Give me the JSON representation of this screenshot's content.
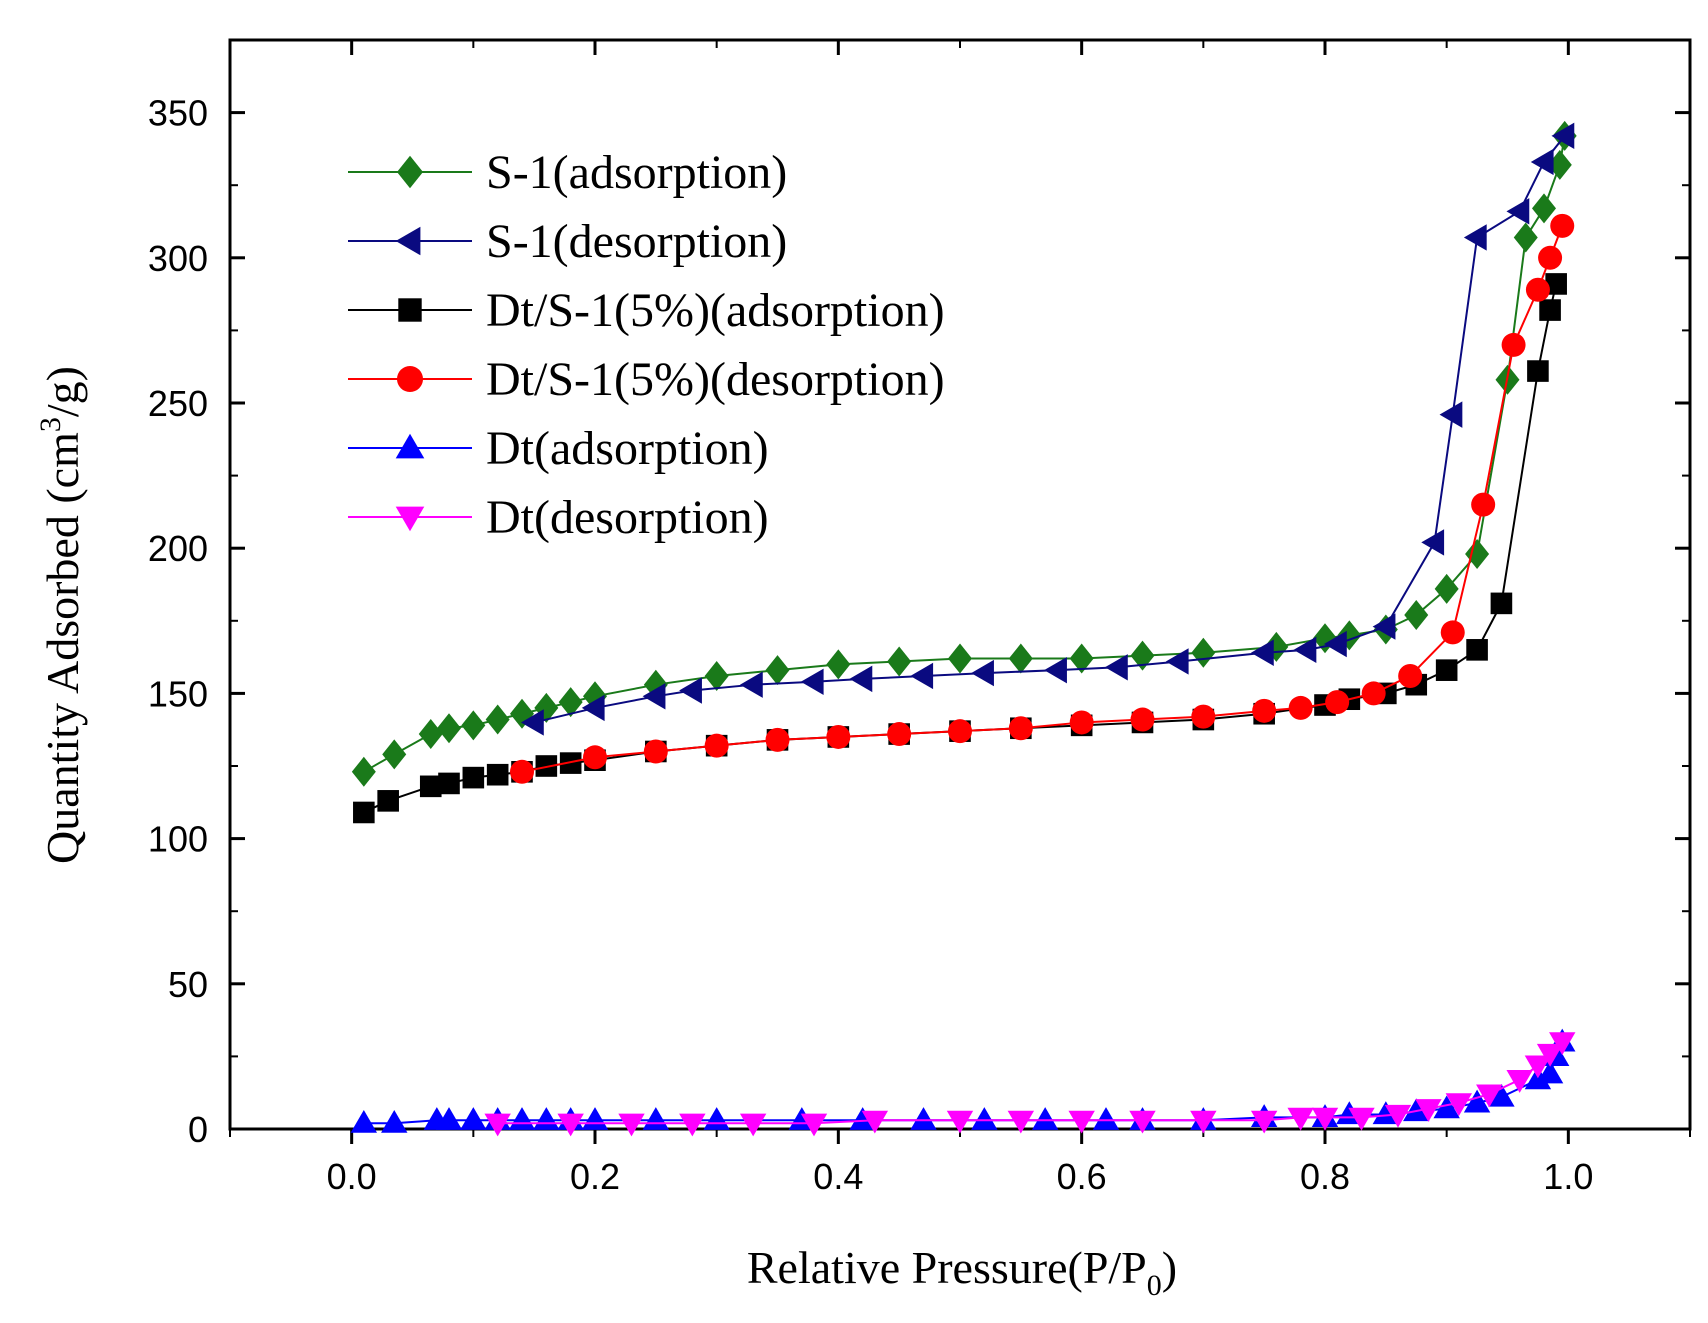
{
  "chart_data": {
    "type": "line",
    "title": "",
    "xlabel": "Relative Pressure(P/P",
    "xlabel_sub": "0",
    "xlabel_end": ")",
    "ylabel": "Quantity Adsorbed (cm",
    "ylabel_sup": "3",
    "ylabel_end": "/g)",
    "xlim": [
      -0.1,
      1.1
    ],
    "ylim": [
      0,
      375
    ],
    "xticks": [
      0.0,
      0.2,
      0.4,
      0.6,
      0.8,
      1.0
    ],
    "xtick_labels": [
      "0.0",
      "0.2",
      "0.4",
      "0.6",
      "0.8",
      "1.0"
    ],
    "yticks": [
      0,
      50,
      100,
      150,
      200,
      250,
      300,
      350
    ],
    "ytick_labels": [
      "0",
      "50",
      "100",
      "150",
      "200",
      "250",
      "300",
      "350"
    ],
    "grid": false,
    "legend_position": "top-left",
    "series": [
      {
        "name": "S-1(adsorption)",
        "color": "#1a7a1a",
        "marker": "diamond",
        "x": [
          0.01,
          0.035,
          0.065,
          0.08,
          0.1,
          0.12,
          0.14,
          0.16,
          0.18,
          0.2,
          0.25,
          0.3,
          0.35,
          0.4,
          0.45,
          0.5,
          0.55,
          0.6,
          0.65,
          0.7,
          0.76,
          0.8,
          0.82,
          0.85,
          0.875,
          0.9,
          0.925,
          0.95,
          0.965,
          0.98,
          0.993,
          0.997
        ],
        "y": [
          123,
          129,
          136,
          138,
          139,
          141,
          143,
          145,
          147,
          149,
          153,
          156,
          158,
          160,
          161,
          162,
          162,
          162,
          163,
          164,
          166,
          169,
          170,
          172,
          177,
          186,
          198,
          258,
          307,
          317,
          332,
          342
        ]
      },
      {
        "name": "S-1(desorption)",
        "color": "#0a0a80",
        "marker": "triangle-left",
        "x": [
          0.997,
          0.98,
          0.96,
          0.925,
          0.905,
          0.89,
          0.85,
          0.81,
          0.785,
          0.75,
          0.68,
          0.63,
          0.58,
          0.52,
          0.47,
          0.42,
          0.38,
          0.33,
          0.28,
          0.25,
          0.2,
          0.15
        ],
        "y": [
          342,
          333,
          316,
          307,
          246,
          202,
          173,
          167,
          165,
          164,
          161,
          159,
          158,
          157,
          156,
          155,
          154,
          153,
          151,
          149,
          145,
          140
        ]
      },
      {
        "name": "Dt/S-1(5%)(adsorption)",
        "color": "#000000",
        "marker": "square",
        "x": [
          0.01,
          0.03,
          0.065,
          0.08,
          0.1,
          0.12,
          0.14,
          0.16,
          0.18,
          0.2,
          0.25,
          0.3,
          0.35,
          0.4,
          0.45,
          0.5,
          0.55,
          0.6,
          0.65,
          0.7,
          0.75,
          0.8,
          0.82,
          0.85,
          0.875,
          0.9,
          0.925,
          0.945,
          0.975,
          0.985,
          0.99
        ],
        "y": [
          109,
          113,
          118,
          119,
          121,
          122,
          123,
          125,
          126,
          127,
          130,
          132,
          134,
          135,
          136,
          137,
          138,
          139,
          140,
          141,
          143,
          146,
          148,
          150,
          153,
          158,
          165,
          181,
          261,
          282,
          291
        ]
      },
      {
        "name": "Dt/S-1(5%)(desorption)",
        "color": "#ff0000",
        "marker": "circle",
        "x": [
          0.995,
          0.985,
          0.975,
          0.955,
          0.93,
          0.905,
          0.87,
          0.84,
          0.81,
          0.78,
          0.75,
          0.7,
          0.65,
          0.6,
          0.55,
          0.5,
          0.45,
          0.4,
          0.35,
          0.3,
          0.25,
          0.2,
          0.14
        ],
        "y": [
          311,
          300,
          289,
          270,
          215,
          171,
          156,
          150,
          147,
          145,
          144,
          142,
          141,
          140,
          138,
          137,
          136,
          135,
          134,
          132,
          130,
          128,
          123
        ]
      },
      {
        "name": "Dt(adsorption)",
        "color": "#0000ff",
        "marker": "triangle-up",
        "x": [
          0.01,
          0.035,
          0.07,
          0.08,
          0.1,
          0.12,
          0.14,
          0.16,
          0.18,
          0.2,
          0.25,
          0.3,
          0.37,
          0.42,
          0.47,
          0.52,
          0.57,
          0.62,
          0.65,
          0.7,
          0.75,
          0.8,
          0.82,
          0.85,
          0.875,
          0.9,
          0.925,
          0.945,
          0.975,
          0.985,
          0.99,
          0.995
        ],
        "y": [
          2,
          2,
          3,
          3,
          3,
          3,
          3,
          3,
          3,
          3,
          3,
          3,
          3,
          3,
          3,
          3,
          3,
          3,
          3,
          3,
          4,
          4,
          5,
          5,
          6,
          7,
          9,
          11,
          17,
          19,
          25,
          30
        ]
      },
      {
        "name": "Dt(desorption)",
        "color": "#ff00ff",
        "marker": "triangle-down",
        "x": [
          0.995,
          0.985,
          0.975,
          0.96,
          0.935,
          0.91,
          0.885,
          0.86,
          0.83,
          0.8,
          0.78,
          0.75,
          0.7,
          0.65,
          0.6,
          0.55,
          0.5,
          0.43,
          0.38,
          0.33,
          0.28,
          0.23,
          0.18,
          0.12
        ],
        "y": [
          30,
          26,
          22,
          17,
          12,
          9,
          7,
          5,
          4,
          4,
          4,
          3,
          3,
          3,
          3,
          3,
          3,
          3,
          2,
          2,
          2,
          2,
          2,
          2
        ]
      }
    ]
  }
}
